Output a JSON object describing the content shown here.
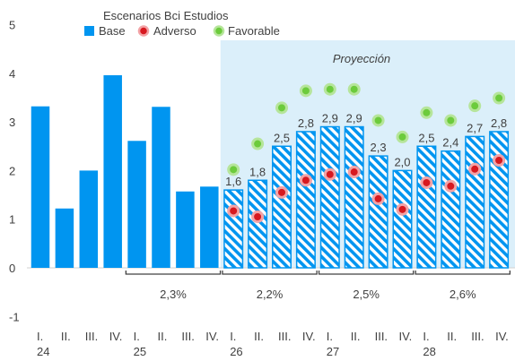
{
  "chart_data": {
    "type": "bar",
    "title": "Escenarios Bci Estudios",
    "projection_label": "Proyección",
    "ylim": [
      -1,
      5
    ],
    "yticks": [
      "-1",
      "0",
      "1",
      "2",
      "3",
      "4",
      "5"
    ],
    "quarters": [
      "I.",
      "II.",
      "III.",
      "IV.",
      "I.",
      "II.",
      "III.",
      "IV.",
      "I.",
      "II.",
      "III.",
      "IV.",
      "I.",
      "II.",
      "III.",
      "IV.",
      "I.",
      "II.",
      "III.",
      "IV."
    ],
    "years": [
      "24",
      "25",
      "26",
      "27",
      "28"
    ],
    "projection_start_index": 8,
    "series": [
      {
        "name": "Base",
        "color": "#0095f0",
        "values": [
          3.32,
          1.22,
          2.0,
          3.96,
          2.61,
          3.31,
          1.57,
          1.67,
          1.6,
          1.8,
          2.5,
          2.8,
          2.9,
          2.9,
          2.3,
          2.0,
          2.5,
          2.4,
          2.7,
          2.8
        ],
        "data_labels": [
          "",
          "",
          "",
          "",
          "",
          "",
          "",
          "",
          "1,6",
          "1,8",
          "2,5",
          "2,8",
          "2,9",
          "2,9",
          "2,3",
          "2,0",
          "2,5",
          "2,4",
          "2,7",
          "2,8"
        ]
      },
      {
        "name": "Adverso",
        "color": "#d71920",
        "values": [
          null,
          null,
          null,
          null,
          null,
          null,
          null,
          null,
          1.17,
          1.05,
          1.55,
          1.8,
          1.92,
          1.97,
          1.42,
          1.2,
          1.75,
          1.68,
          2.03,
          2.21
        ]
      },
      {
        "name": "Favorable",
        "color": "#6ccb3c",
        "values": [
          null,
          null,
          null,
          null,
          null,
          null,
          null,
          null,
          2.02,
          2.55,
          3.29,
          3.64,
          3.67,
          3.67,
          3.03,
          2.69,
          3.19,
          3.03,
          3.33,
          3.49
        ]
      }
    ],
    "annual_brackets": [
      {
        "label": "2,3%",
        "from": 4,
        "to": 7
      },
      {
        "label": "2,2%",
        "from": 8,
        "to": 11
      },
      {
        "label": "2,5%",
        "from": 12,
        "to": 15
      },
      {
        "label": "2,6%",
        "from": 16,
        "to": 19
      }
    ],
    "legend": "top"
  }
}
